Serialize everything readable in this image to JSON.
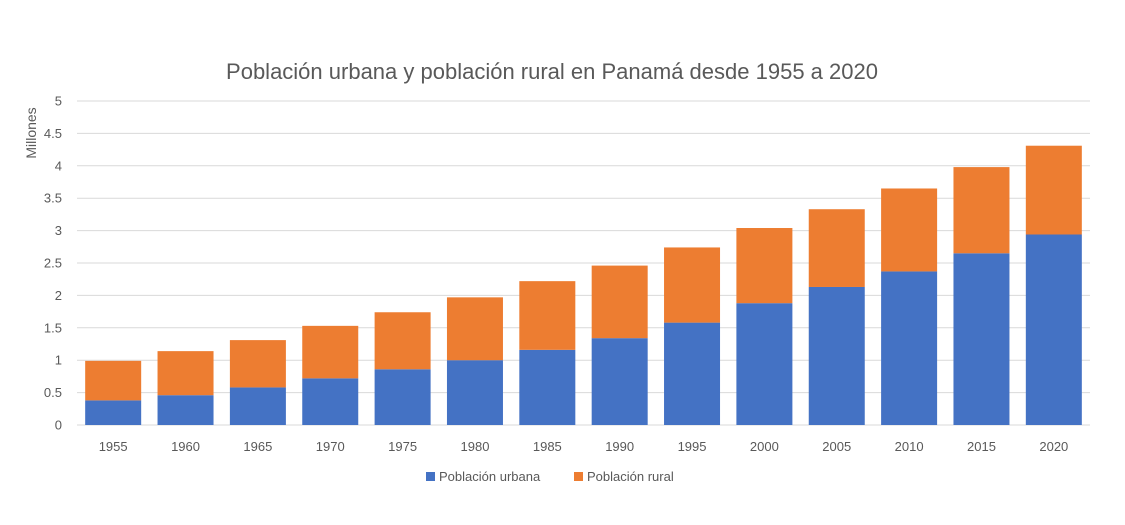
{
  "chart_data": {
    "type": "bar",
    "stacked": true,
    "title": "Población urbana y población rural en Panamá desde 1955 a 2020",
    "xlabel": "",
    "ylabel": "Millones",
    "ylim": [
      0,
      5
    ],
    "yticks": [
      "0",
      "0.5",
      "1",
      "1.5",
      "2",
      "2.5",
      "3",
      "3.5",
      "4",
      "4.5",
      "5"
    ],
    "grid": true,
    "legend_position": "bottom",
    "categories": [
      "1955",
      "1960",
      "1965",
      "1970",
      "1975",
      "1980",
      "1985",
      "1990",
      "1995",
      "2000",
      "2005",
      "2010",
      "2015",
      "2020"
    ],
    "series": [
      {
        "name": "Población urbana",
        "color": "#4472c4",
        "values": [
          0.38,
          0.46,
          0.58,
          0.72,
          0.86,
          1.0,
          1.16,
          1.34,
          1.58,
          1.88,
          2.13,
          2.37,
          2.65,
          2.94
        ]
      },
      {
        "name": "Población rural",
        "color": "#ed7d31",
        "values": [
          0.61,
          0.68,
          0.73,
          0.81,
          0.88,
          0.97,
          1.06,
          1.12,
          1.16,
          1.16,
          1.2,
          1.28,
          1.33,
          1.37
        ]
      }
    ]
  }
}
